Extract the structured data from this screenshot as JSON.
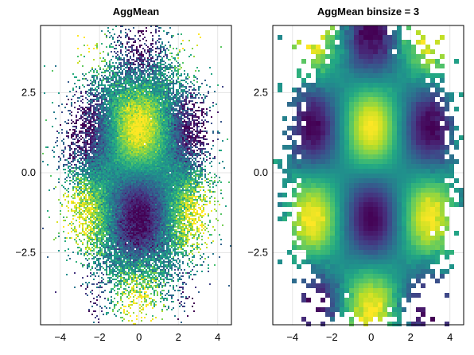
{
  "chart_data": [
    {
      "type": "heatmap",
      "title": "AggMean",
      "x_ticks": [
        "−4",
        "−2",
        "0",
        "2",
        "4"
      ],
      "x_tick_values": [
        -4,
        -2,
        0,
        2,
        4
      ],
      "y_ticks": [
        "2.5",
        "0.0",
        "−2.5"
      ],
      "y_tick_values": [
        2.5,
        0.0,
        -2.5
      ],
      "xlim": [
        -5.0,
        4.7
      ],
      "ylim": [
        -4.75,
        4.6
      ],
      "grid": true,
      "colormap": "viridis",
      "aggregation": "mean",
      "binsize": 1,
      "description_data": {
        "x_distribution": "normal, sd≈1.3",
        "y_distribution": "normal, sd≈1.5",
        "value_maxima": [
          {
            "x": 0,
            "y": 1.4
          },
          {
            "x": -3,
            "y": -1.2
          },
          {
            "x": 3,
            "y": -1.2
          }
        ],
        "value_minima": [
          {
            "x": 0,
            "y": -1.4
          },
          {
            "x": -3,
            "y": 1.4
          },
          {
            "x": 3,
            "y": 1.4
          }
        ]
      }
    },
    {
      "type": "heatmap",
      "title": "AggMean binsize = 3",
      "x_ticks": [
        "−4",
        "−2",
        "0",
        "2",
        "4"
      ],
      "x_tick_values": [
        -4,
        -2,
        0,
        2,
        4
      ],
      "y_ticks": [
        "2.5",
        "0.0",
        "−2.5"
      ],
      "y_tick_values": [
        2.5,
        0.0,
        -2.5
      ],
      "xlim": [
        -5.0,
        4.7
      ],
      "ylim": [
        -4.75,
        4.6
      ],
      "grid": true,
      "colormap": "viridis",
      "aggregation": "mean",
      "binsize": 3
    }
  ],
  "colors": {
    "background": "#ffffff",
    "axis": "#000000",
    "grid": "#e6e6e6"
  }
}
